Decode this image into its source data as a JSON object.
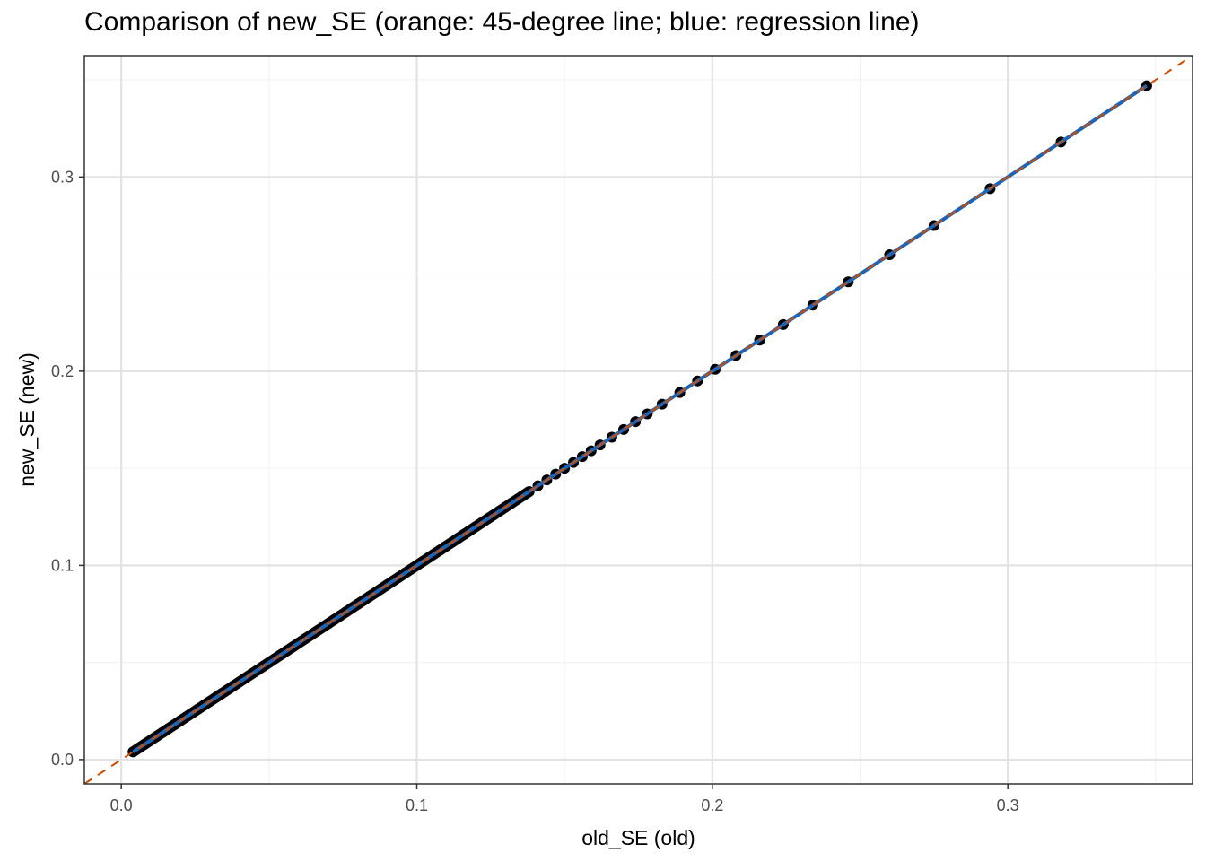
{
  "chart_data": {
    "type": "scatter",
    "title": "Comparison of new_SE (orange: 45-degree line; blue: regression line)",
    "xlabel": "old_SE (old)",
    "ylabel": "new_SE (new)",
    "xlim": [
      -0.0125,
      0.3625
    ],
    "ylim": [
      -0.0125,
      0.3625
    ],
    "x_ticks": [
      0.0,
      0.1,
      0.2,
      0.3
    ],
    "x_tick_labels": [
      "0.0",
      "0.1",
      "0.2",
      "0.3"
    ],
    "y_ticks": [
      0.0,
      0.1,
      0.2,
      0.3
    ],
    "y_tick_labels": [
      "0.0",
      "0.1",
      "0.2",
      "0.3"
    ],
    "grid": true,
    "legend": "none",
    "series": [
      {
        "type": "scatter",
        "color": "#000000",
        "x": [
          0.004,
          0.006,
          0.008,
          0.01,
          0.012,
          0.014,
          0.016,
          0.018,
          0.02,
          0.022,
          0.024,
          0.026,
          0.028,
          0.03,
          0.032,
          0.034,
          0.036,
          0.038,
          0.04,
          0.042,
          0.044,
          0.046,
          0.048,
          0.05,
          0.052,
          0.054,
          0.056,
          0.058,
          0.06,
          0.062,
          0.064,
          0.066,
          0.068,
          0.07,
          0.072,
          0.074,
          0.076,
          0.078,
          0.08,
          0.082,
          0.084,
          0.086,
          0.088,
          0.09,
          0.092,
          0.094,
          0.096,
          0.098,
          0.1,
          0.102,
          0.104,
          0.106,
          0.108,
          0.11,
          0.112,
          0.114,
          0.116,
          0.118,
          0.12,
          0.122,
          0.124,
          0.126,
          0.128,
          0.13,
          0.132,
          0.134,
          0.136,
          0.138,
          0.141,
          0.144,
          0.147,
          0.15,
          0.153,
          0.156,
          0.159,
          0.162,
          0.166,
          0.17,
          0.174,
          0.178,
          0.183,
          0.189,
          0.195,
          0.201,
          0.208,
          0.216,
          0.224,
          0.234,
          0.246,
          0.26,
          0.275,
          0.294,
          0.318,
          0.347
        ],
        "y": [
          0.004,
          0.006,
          0.008,
          0.01,
          0.012,
          0.014,
          0.016,
          0.018,
          0.02,
          0.022,
          0.024,
          0.026,
          0.028,
          0.03,
          0.032,
          0.034,
          0.036,
          0.038,
          0.04,
          0.042,
          0.044,
          0.046,
          0.048,
          0.05,
          0.052,
          0.054,
          0.056,
          0.058,
          0.06,
          0.062,
          0.064,
          0.066,
          0.068,
          0.07,
          0.072,
          0.074,
          0.076,
          0.078,
          0.08,
          0.082,
          0.084,
          0.086,
          0.088,
          0.09,
          0.092,
          0.094,
          0.096,
          0.098,
          0.1,
          0.102,
          0.104,
          0.106,
          0.108,
          0.11,
          0.112,
          0.114,
          0.116,
          0.118,
          0.12,
          0.122,
          0.124,
          0.126,
          0.128,
          0.13,
          0.132,
          0.134,
          0.136,
          0.138,
          0.141,
          0.144,
          0.147,
          0.15,
          0.153,
          0.156,
          0.159,
          0.162,
          0.166,
          0.17,
          0.174,
          0.178,
          0.183,
          0.189,
          0.195,
          0.201,
          0.208,
          0.216,
          0.224,
          0.234,
          0.246,
          0.26,
          0.275,
          0.294,
          0.318,
          0.347
        ]
      },
      {
        "type": "line",
        "color": "#1f64b4",
        "style": "solid",
        "x": [
          0.004,
          0.347
        ],
        "y": [
          0.004,
          0.347
        ]
      },
      {
        "type": "line",
        "color": "#cc4c02",
        "style": "dashed",
        "x": [
          -0.0125,
          0.3625
        ],
        "y": [
          -0.0125,
          0.3625
        ]
      }
    ]
  },
  "colors": {
    "panel_border": "#333333",
    "grid_major": "#e3e3e3",
    "grid_minor": "#f2f2f2",
    "tick_text": "#4d4d4d"
  }
}
